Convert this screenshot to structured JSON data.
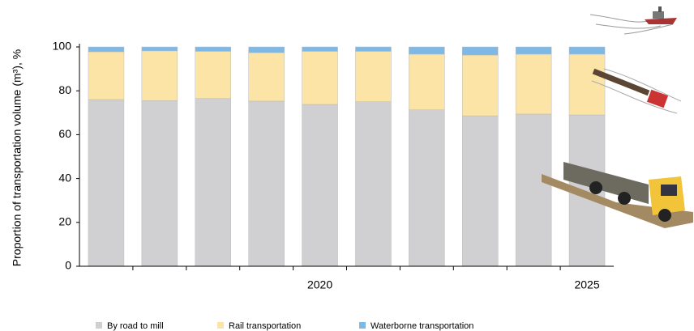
{
  "chart_data": {
    "type": "stacked_bar",
    "y_label": "Proportion  of transportation volume (m³), %",
    "categories": [
      null,
      null,
      null,
      null,
      "2020",
      null,
      null,
      null,
      null,
      "2025"
    ],
    "series": [
      {
        "name": "By road to mill",
        "color": "#d0cfd1",
        "values": [
          76,
          75.5,
          76.5,
          75.3,
          73.8,
          75,
          71.3,
          68.6,
          69.4,
          69
        ]
      },
      {
        "name": "Rail transportation",
        "color": "#fbe4a5",
        "values": [
          21.8,
          22.7,
          21.5,
          22.1,
          24.2,
          23,
          25.4,
          27.7,
          27.3,
          27.7
        ]
      },
      {
        "name": "Waterborne transportation",
        "color": "#7eb8e4",
        "values": [
          2.2,
          1.8,
          2,
          2.6,
          2,
          2,
          3.3,
          3.7,
          3.3,
          3.3
        ]
      }
    ],
    "ylim": [
      0,
      100
    ],
    "yticks": [
      0,
      20,
      40,
      60,
      80,
      100
    ]
  }
}
